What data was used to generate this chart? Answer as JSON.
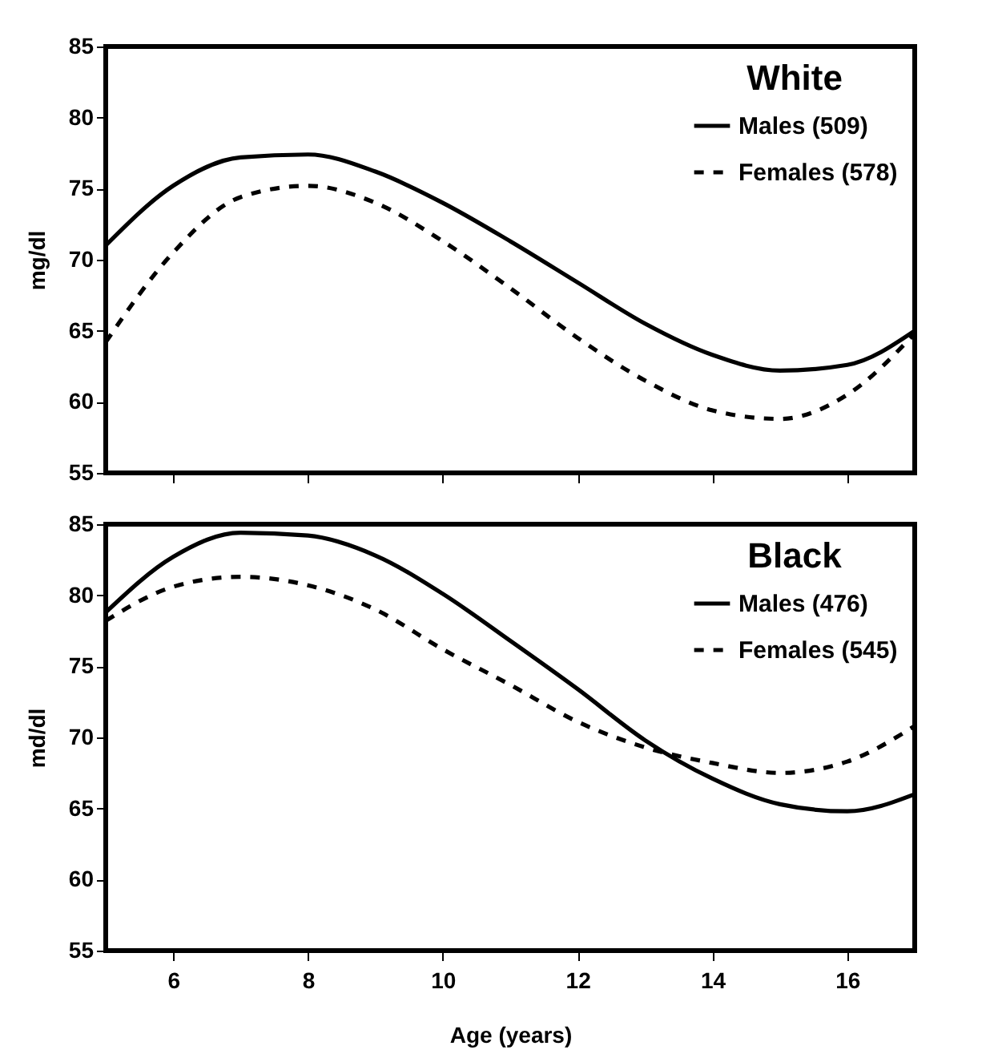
{
  "chart_data": [
    {
      "type": "line",
      "legend_title": "White",
      "ylabel": "mg/dl",
      "x": [
        5,
        6,
        7,
        8,
        9,
        10,
        11,
        12,
        13,
        14,
        15,
        16,
        17
      ],
      "xlim": [
        5,
        17
      ],
      "xticks": [
        6,
        8,
        10,
        12,
        14,
        16
      ],
      "ylim": [
        55,
        85
      ],
      "yticks": [
        55,
        60,
        65,
        70,
        75,
        80,
        85
      ],
      "tick_labels": "y",
      "legend": "top right",
      "series": [
        {
          "name": "Males (509)",
          "color": "#000000",
          "line_style": "solid",
          "values": [
            71,
            75.2,
            77.2,
            77.4,
            76.2,
            74,
            71.3,
            68.4,
            65.5,
            63.3,
            62.2,
            62.6,
            65
          ]
        },
        {
          "name": "Females (578)",
          "color": "#000000",
          "line_style": "dashed",
          "values": [
            64.2,
            70.5,
            74.4,
            75.2,
            74,
            71.3,
            68,
            64.5,
            61.5,
            59.4,
            58.8,
            60.5,
            64.8
          ]
        }
      ]
    },
    {
      "type": "line",
      "legend_title": "Black",
      "ylabel": "md/dl",
      "xlabel": "Age (years)",
      "x": [
        5,
        6,
        7,
        8,
        9,
        10,
        11,
        12,
        13,
        14,
        15,
        16,
        17
      ],
      "xlim": [
        5,
        17
      ],
      "xticks": [
        6,
        8,
        10,
        12,
        14,
        16
      ],
      "ylim": [
        55,
        85
      ],
      "yticks": [
        55,
        60,
        65,
        70,
        75,
        80,
        85
      ],
      "legend": "top right",
      "series": [
        {
          "name": "Males (476)",
          "color": "#000000",
          "line_style": "solid",
          "values": [
            78.8,
            82.7,
            84.4,
            84.2,
            82.8,
            80.1,
            76.8,
            73.4,
            69.8,
            67.1,
            65.3,
            64.8,
            66
          ]
        },
        {
          "name": "Females (545)",
          "color": "#000000",
          "line_style": "dashed",
          "values": [
            78.2,
            80.6,
            81.3,
            80.7,
            79,
            76.2,
            73.7,
            71.1,
            69.3,
            68.2,
            67.5,
            68.3,
            70.8
          ]
        }
      ]
    }
  ]
}
